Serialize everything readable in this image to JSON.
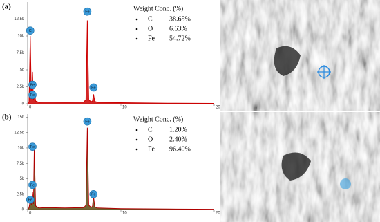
{
  "chart_data": [
    {
      "type": "line",
      "panel": "(a)",
      "color": "#cc0000",
      "fill": "#cc0000",
      "x": [
        0,
        0.15,
        0.28,
        0.4,
        0.52,
        0.62,
        0.71,
        0.85,
        1.2,
        2,
        4,
        6.0,
        6.25,
        6.4,
        6.55,
        6.8,
        6.95,
        7.06,
        7.2,
        7.5,
        10,
        15,
        20
      ],
      "values": [
        0,
        300,
        10000,
        800,
        4700,
        600,
        1900,
        400,
        200,
        250,
        200,
        250,
        600,
        12300,
        600,
        300,
        400,
        1400,
        350,
        200,
        150,
        80,
        50
      ],
      "xlim": [
        0,
        20
      ],
      "xticks": [
        0,
        10,
        20
      ],
      "ylim": [
        0,
        15000
      ],
      "yticks": [
        0,
        {
          "value": 2500,
          "label": "2.5k"
        },
        {
          "value": 5000,
          "label": "5k"
        },
        {
          "value": 7500,
          "label": "7.5k"
        },
        {
          "value": 10000,
          "label": "10k"
        },
        {
          "value": 12500,
          "label": "12.5k"
        }
      ],
      "peak_labels": [
        {
          "label": "C",
          "x": 0.28,
          "y": 10800
        },
        {
          "label": "Fe",
          "x": 0.52,
          "y": 2800
        },
        {
          "label": "Fe",
          "x": 0.52,
          "y": 1300
        },
        {
          "label": "Fe",
          "x": 6.4,
          "y": 13600
        },
        {
          "label": "Fe",
          "x": 7.06,
          "y": 2400
        }
      ],
      "weight_title": "Weight Conc. (%)",
      "elements": [
        "C",
        "O",
        "Fe"
      ],
      "weight_labels": [
        "38.65%",
        "6.63%",
        "54.72%"
      ]
    },
    {
      "type": "line",
      "panel": "(b)",
      "color": "#b00000",
      "fill": "#5a4a10",
      "x": [
        0,
        0.15,
        0.28,
        0.4,
        0.52,
        0.62,
        0.71,
        0.85,
        1.2,
        2,
        4,
        6.0,
        6.25,
        6.4,
        6.55,
        6.8,
        6.95,
        7.06,
        7.2,
        7.5,
        10,
        15,
        20
      ],
      "values": [
        0,
        300,
        1500,
        800,
        2800,
        900,
        10300,
        600,
        250,
        300,
        250,
        300,
        700,
        13300,
        700,
        350,
        500,
        2200,
        400,
        250,
        150,
        80,
        50
      ],
      "xlim": [
        0,
        20
      ],
      "xticks": [
        0,
        10,
        20
      ],
      "ylim": [
        0,
        15500
      ],
      "yticks": [
        0,
        {
          "value": 2500,
          "label": "2.5k"
        },
        {
          "value": 5000,
          "label": "5k"
        },
        {
          "value": 7500,
          "label": "7.5k"
        },
        {
          "value": 10000,
          "label": "10k"
        },
        {
          "value": 12500,
          "label": "12.5k"
        },
        {
          "value": 15000,
          "label": "15k"
        }
      ],
      "peak_labels": [
        {
          "label": "Fe",
          "x": 0.52,
          "y": 10200
        },
        {
          "label": "Fe",
          "x": 0.52,
          "y": 4000
        },
        {
          "label": "Fe",
          "x": 0.28,
          "y": 1600
        },
        {
          "label": "Fe",
          "x": 6.4,
          "y": 14300
        },
        {
          "label": "Fe",
          "x": 7.06,
          "y": 2500
        }
      ],
      "weight_title": "Weight Conc. (%)",
      "elements": [
        "C",
        "O",
        "Fe"
      ],
      "weight_labels": [
        "1.20%",
        "2.40%",
        "96.40%"
      ]
    }
  ]
}
